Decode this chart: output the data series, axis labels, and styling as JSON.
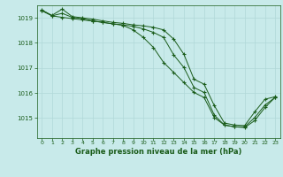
{
  "background_color": "#c8eaea",
  "grid_color": "#b0d8d8",
  "line_color": "#1a5c1a",
  "marker": "+",
  "title": "Graphe pression niveau de la mer (hPa)",
  "xlim": [
    -0.5,
    23.5
  ],
  "ylim": [
    1014.2,
    1019.5
  ],
  "yticks": [
    1015,
    1016,
    1017,
    1018,
    1019
  ],
  "xticks": [
    0,
    1,
    2,
    3,
    4,
    5,
    6,
    7,
    8,
    9,
    10,
    11,
    12,
    13,
    14,
    15,
    16,
    17,
    18,
    19,
    20,
    21,
    22,
    23
  ],
  "series": [
    [
      1019.3,
      1019.1,
      1019.35,
      1019.05,
      1019.0,
      1018.95,
      1018.88,
      1018.82,
      1018.78,
      1018.72,
      1018.68,
      1018.62,
      1018.52,
      1018.15,
      1017.55,
      1016.55,
      1016.35,
      1015.5,
      1014.8,
      1014.72,
      1014.7,
      1015.25,
      1015.75,
      1015.85
    ],
    [
      1019.28,
      1019.08,
      1019.18,
      1019.02,
      1018.97,
      1018.88,
      1018.82,
      1018.76,
      1018.72,
      1018.66,
      1018.56,
      1018.42,
      1018.22,
      1017.52,
      1017.02,
      1016.22,
      1016.02,
      1015.12,
      1014.72,
      1014.65,
      1014.65,
      1015.02,
      1015.52,
      1015.82
    ],
    [
      1019.32,
      1019.08,
      1019.02,
      1018.97,
      1018.92,
      1018.87,
      1018.82,
      1018.76,
      1018.7,
      1018.52,
      1018.22,
      1017.82,
      1017.22,
      1016.82,
      1016.42,
      1016.02,
      1015.82,
      1015.02,
      1014.72,
      1014.65,
      1014.62,
      1014.9,
      1015.42,
      1015.82
    ]
  ]
}
